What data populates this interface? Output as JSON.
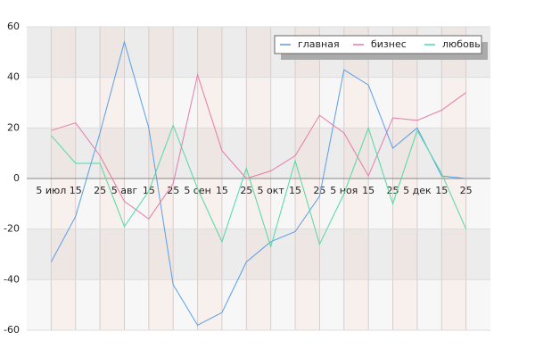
{
  "chart_data": {
    "type": "line",
    "categories": [
      "5 июл",
      "15",
      "25",
      "5 авг",
      "15",
      "25",
      "5 сен",
      "15",
      "25",
      "5 окт",
      "15",
      "25",
      "5 ноя",
      "15",
      "25",
      "5 дек",
      "15",
      "25"
    ],
    "series": [
      {
        "name": "главная",
        "color": "#5a9ee6",
        "values": [
          -33,
          -15,
          18,
          54,
          20,
          -42,
          -58,
          -53,
          -33,
          -25,
          -21,
          -7,
          43,
          37,
          12,
          20,
          1,
          0
        ]
      },
      {
        "name": "бизнес",
        "color": "#e67aaa",
        "values": [
          19,
          22,
          9,
          -9,
          -16,
          -2,
          41,
          11,
          0,
          3,
          9,
          25,
          18,
          1,
          24,
          23,
          27,
          34
        ]
      },
      {
        "name": "любовь",
        "color": "#4fdaa2",
        "values": [
          17,
          6,
          6,
          -19,
          -5,
          21,
          -4,
          -25,
          4,
          -27,
          7,
          -26,
          -6,
          20,
          -10,
          19,
          2,
          -20
        ]
      }
    ],
    "ylim": [
      -60,
      60
    ],
    "yticks": [
      -60,
      -40,
      -20,
      0,
      20,
      40,
      60
    ],
    "grid": true,
    "legend": "upper right"
  }
}
